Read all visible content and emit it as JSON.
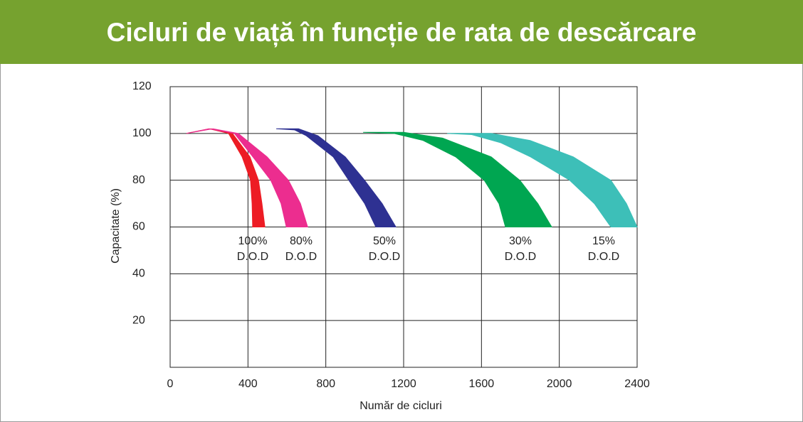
{
  "chart_data": {
    "type": "band",
    "title": "Cicluri de viață în funcție de rata de descărcare",
    "x_label": "Număr de cicluri",
    "y_label": "Capacitate (%)",
    "xlim": [
      0,
      2400
    ],
    "ylim": [
      0,
      120
    ],
    "xticks": [
      0,
      400,
      800,
      1200,
      1600,
      2000,
      2400
    ],
    "yticks": [
      20,
      40,
      60,
      80,
      100,
      120
    ],
    "grid": true,
    "label_suffix": "D.O.D",
    "series": [
      {
        "name": "100%",
        "color": "#ed1c24",
        "x": [
          84,
          200,
          300,
          370,
          413,
          421,
          424
        ],
        "values": [
          100,
          102,
          100,
          90,
          80,
          70,
          60
        ],
        "x_outer": [
          84,
          210,
          320,
          410,
          454,
          472,
          487
        ],
        "values_outer": [
          100,
          102,
          100,
          90,
          80,
          70,
          60
        ]
      },
      {
        "name": "80%",
        "color": "#ec2d8f",
        "x": [
          84,
          200,
          330,
          425,
          517,
          570,
          597
        ],
        "values": [
          100,
          102,
          100,
          90,
          80,
          70,
          60
        ],
        "x_outer": [
          84,
          220,
          350,
          498,
          608,
          670,
          707
        ],
        "values_outer": [
          100,
          102,
          100,
          90,
          80,
          70,
          60
        ]
      },
      {
        "name": "50%",
        "color": "#2e3192",
        "x": [
          545,
          640,
          700,
          838,
          918,
          1000,
          1057
        ],
        "values": [
          102,
          101.5,
          99,
          90,
          80,
          70,
          60
        ],
        "x_outer": [
          545,
          660,
          760,
          900,
          999,
          1090,
          1160
        ],
        "values_outer": [
          102,
          102,
          99,
          90,
          80,
          70,
          60
        ]
      },
      {
        "name": "30%",
        "color": "#00a651",
        "x": [
          992,
          1150,
          1300,
          1467,
          1614,
          1690,
          1723
        ],
        "values": [
          100.5,
          100,
          97,
          90,
          80,
          70,
          60
        ],
        "x_outer": [
          992,
          1200,
          1400,
          1650,
          1797,
          1890,
          1961
        ],
        "values_outer": [
          100.5,
          100.5,
          98,
          90,
          80,
          70,
          60
        ]
      },
      {
        "name": "15%",
        "color": "#3dbfb8",
        "x": [
          1423,
          1550,
          1700,
          1852,
          2053,
          2180,
          2265
        ],
        "values": [
          100,
          99.5,
          96,
          90,
          80,
          70,
          60
        ],
        "x_outer": [
          1423,
          1650,
          1850,
          2072,
          2265,
          2345,
          2400
        ],
        "values_outer": [
          100,
          100,
          97,
          90,
          80,
          70,
          60
        ]
      }
    ]
  }
}
